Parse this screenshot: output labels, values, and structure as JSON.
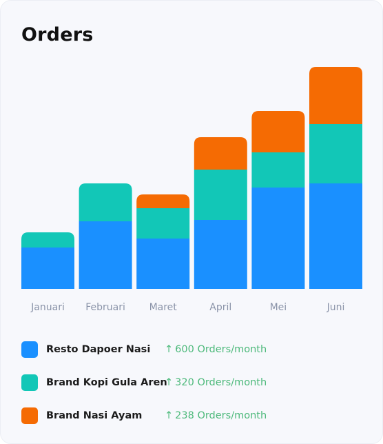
{
  "card": {
    "title": "Orders"
  },
  "chart_data": {
    "type": "bar",
    "stacked": true,
    "categories": [
      "Januari",
      "Februari",
      "Maret",
      "April",
      "Mei",
      "Juni"
    ],
    "series": [
      {
        "name": "Resto Dapoer Nasi",
        "color": "#1a90ff",
        "values": [
          60,
          98,
          73,
          100,
          147,
          153
        ]
      },
      {
        "name": "Brand Kopi Gula Aren",
        "color": "#12c7b7",
        "values": [
          22,
          55,
          44,
          73,
          51,
          86
        ]
      },
      {
        "name": "Brand Nasi Ayam",
        "color": "#f56b03",
        "values": [
          0,
          0,
          20,
          47,
          60,
          83
        ]
      }
    ],
    "ylim": [
      0,
      330
    ],
    "grid": false,
    "legend_position": "bottom"
  },
  "legend": [
    {
      "label": "Resto Dapoer Nasi",
      "color": "#1a90ff",
      "arrow": "↑",
      "rate": "600 Orders/month"
    },
    {
      "label": "Brand Kopi Gula Aren",
      "color": "#12c7b7",
      "arrow": "↑",
      "rate": "320 Orders/month"
    },
    {
      "label": "Brand Nasi Ayam",
      "color": "#f56b03",
      "arrow": "↑",
      "rate": "238 Orders/month"
    }
  ]
}
